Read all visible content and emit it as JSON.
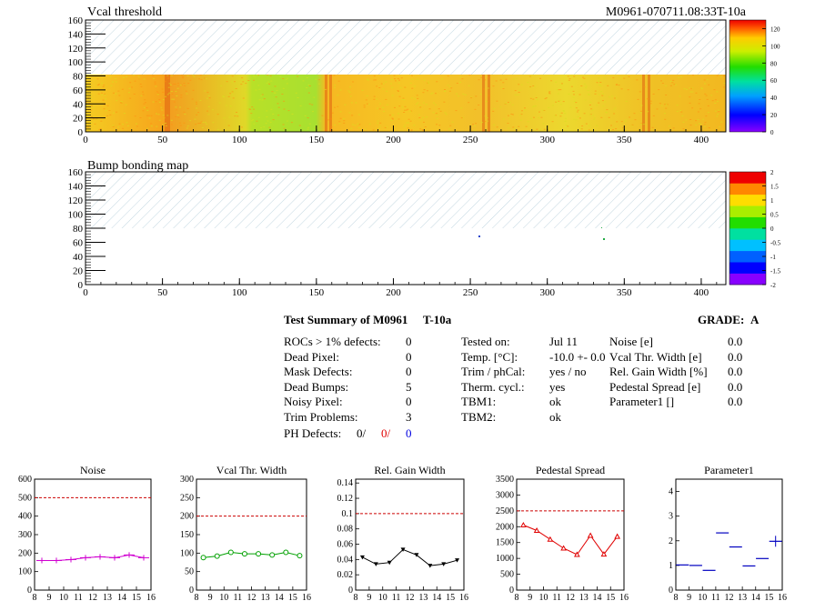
{
  "header": {
    "title": "Vcal threshold",
    "module_id": "M0961-070711.08:33T-10a"
  },
  "maps": [
    {
      "title": "Vcal threshold",
      "x_range": [
        0,
        416
      ],
      "y_range": [
        0,
        160
      ],
      "x_ticks": [
        "0",
        "50",
        "100",
        "150",
        "200",
        "250",
        "300",
        "350",
        "400"
      ],
      "y_ticks": [
        "0",
        "20",
        "40",
        "60",
        "80",
        "100",
        "120",
        "140",
        "160"
      ],
      "colorbar_ticks": [
        "0",
        "20",
        "40",
        "60",
        "80",
        "100",
        "120"
      ],
      "colorbar_range": [
        0,
        130
      ]
    },
    {
      "title": "Bump bonding map",
      "x_range": [
        0,
        416
      ],
      "y_range": [
        0,
        160
      ],
      "x_ticks": [
        "0",
        "50",
        "100",
        "150",
        "200",
        "250",
        "300",
        "350",
        "400"
      ],
      "y_ticks": [
        "0",
        "20",
        "40",
        "60",
        "80",
        "100",
        "120",
        "140",
        "160"
      ],
      "colorbar_ticks": [
        "-2",
        "-1.5",
        "-1",
        "-0.5",
        "0",
        "0.5",
        "1",
        "1.5",
        "2"
      ],
      "colorbar_range": [
        -2,
        2
      ]
    }
  ],
  "summary": {
    "title": "Test Summary of M0961",
    "temp_tag": "T-10a",
    "grade_label": "GRADE:",
    "grade": "A",
    "defects": [
      {
        "label": "ROCs > 1% defects:",
        "value": "0"
      },
      {
        "label": "Dead Pixel:",
        "value": "0"
      },
      {
        "label": "Mask Defects:",
        "value": "0"
      },
      {
        "label": "Dead Bumps:",
        "value": "5"
      },
      {
        "label": "Noisy Pixel:",
        "value": "0"
      },
      {
        "label": "Trim Problems:",
        "value": "3"
      }
    ],
    "ph_defects": {
      "label": "PH Defects:",
      "v1": "0/",
      "v2": "0/",
      "v3": "0"
    },
    "tests": [
      {
        "label": "Tested on:",
        "value": "Jul 11"
      },
      {
        "label": "Temp. [°C]:",
        "value": "-10.0 +- 0.0"
      },
      {
        "label": "Trim / phCal:",
        "value": "yes / no"
      },
      {
        "label": "Therm. cycl.:",
        "value": "yes"
      },
      {
        "label": "TBM1:",
        "value": "ok"
      },
      {
        "label": "TBM2:",
        "value": "ok"
      }
    ],
    "quality": [
      {
        "label": "Noise [e]",
        "value": "0.0"
      },
      {
        "label": "Vcal Thr. Width [e]",
        "value": "0.0"
      },
      {
        "label": "Rel. Gain Width [%]",
        "value": "0.0"
      },
      {
        "label": "Pedestal Spread [e]",
        "value": "0.0"
      },
      {
        "label": "Parameter1 []",
        "value": "0.0"
      }
    ]
  },
  "chart_data": [
    {
      "type": "line",
      "title": "Noise",
      "x": [
        8.5,
        9.5,
        10.5,
        11.5,
        12.5,
        13.5,
        14.5,
        15.5
      ],
      "values": [
        160,
        160,
        165,
        175,
        180,
        175,
        190,
        175
      ],
      "errors": [
        15,
        15,
        15,
        15,
        15,
        15,
        15,
        15
      ],
      "xlim": [
        8,
        16
      ],
      "ylim": [
        0,
        600
      ],
      "xticks": [
        "8",
        "9",
        "10",
        "11",
        "12",
        "13",
        "14",
        "15",
        "16"
      ],
      "yticks": [
        "0",
        "100",
        "200",
        "300",
        "400",
        "500",
        "600"
      ],
      "ref": 500,
      "color": "#d000d0",
      "marker": "plus"
    },
    {
      "type": "line",
      "title": "Vcal Thr. Width",
      "x": [
        8.5,
        9.5,
        10.5,
        11.5,
        12.5,
        13.5,
        14.5,
        15.5
      ],
      "values": [
        88,
        92,
        102,
        98,
        98,
        95,
        102,
        93
      ],
      "xlim": [
        8,
        16
      ],
      "ylim": [
        0,
        300
      ],
      "xticks": [
        "8",
        "9",
        "10",
        "11",
        "12",
        "13",
        "14",
        "15",
        "16"
      ],
      "yticks": [
        "0",
        "50",
        "100",
        "150",
        "200",
        "250",
        "300"
      ],
      "ref": 200,
      "color": "#00a000",
      "marker": "circle"
    },
    {
      "type": "line",
      "title": "Rel. Gain Width",
      "x": [
        8.5,
        9.5,
        10.5,
        11.5,
        12.5,
        13.5,
        14.5,
        15.5
      ],
      "values": [
        0.043,
        0.034,
        0.036,
        0.053,
        0.046,
        0.032,
        0.034,
        0.039
      ],
      "xlim": [
        8,
        16
      ],
      "ylim": [
        0,
        0.145
      ],
      "xticks": [
        "8",
        "9",
        "10",
        "11",
        "12",
        "13",
        "14",
        "15",
        "16"
      ],
      "yticks": [
        "0",
        "0.02",
        "0.04",
        "0.06",
        "0.08",
        "0.1",
        "0.12",
        "0.14"
      ],
      "ytickvals": [
        0,
        0.02,
        0.04,
        0.06,
        0.08,
        0.1,
        0.12,
        0.14
      ],
      "ref": 0.1,
      "color": "#000000",
      "marker": "triangle"
    },
    {
      "type": "line",
      "title": "Pedestal Spread",
      "x": [
        8.5,
        9.5,
        10.5,
        11.5,
        12.5,
        13.5,
        14.5,
        15.5
      ],
      "values": [
        2050,
        1880,
        1600,
        1320,
        1120,
        1720,
        1130,
        1690
      ],
      "xlim": [
        8,
        16
      ],
      "ylim": [
        0,
        3500
      ],
      "xticks": [
        "8",
        "9",
        "10",
        "11",
        "12",
        "13",
        "14",
        "15",
        "16"
      ],
      "yticks": [
        "0",
        "500",
        "1000",
        "1500",
        "2000",
        "2500",
        "3000",
        "3500"
      ],
      "ref": 2500,
      "color": "#e00000",
      "marker": "triangle-open"
    },
    {
      "type": "scatter",
      "title": "Parameter1",
      "x": [
        8.5,
        9.5,
        10.5,
        11.5,
        12.5,
        13.5,
        14.5,
        15.5
      ],
      "values": [
        1.02,
        1.0,
        0.8,
        2.32,
        1.75,
        0.98,
        1.28,
        1.98
      ],
      "xlim": [
        8,
        16
      ],
      "ylim": [
        0,
        4.5
      ],
      "xticks": [
        "8",
        "9",
        "10",
        "11",
        "12",
        "13",
        "14",
        "15",
        "16"
      ],
      "yticks": [
        "0",
        "1",
        "2",
        "3",
        "4"
      ],
      "ytickvals": [
        0,
        1,
        2,
        3,
        4
      ],
      "color": "#0000c0",
      "marker": "hline"
    }
  ]
}
